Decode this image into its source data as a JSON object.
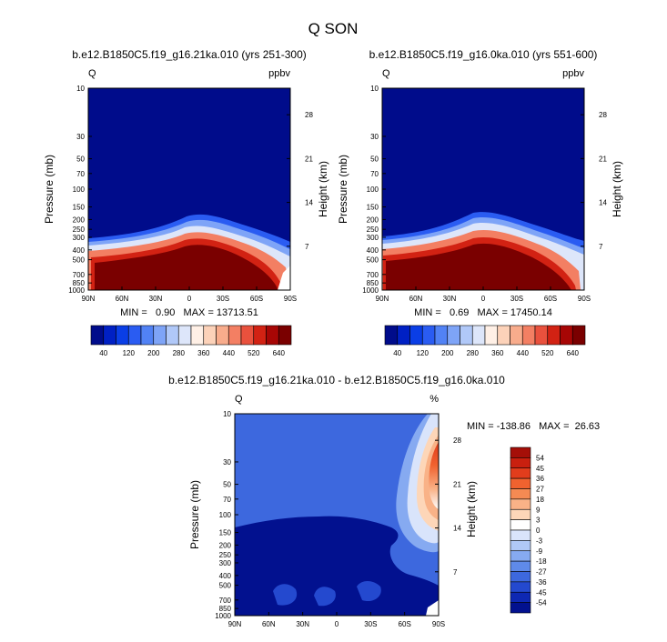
{
  "page": {
    "title": "Q SON"
  },
  "chart_data": [
    {
      "type": "contour",
      "id": "panel-a",
      "title": "b.e12.B1850C5.f19_g16.21ka.010 (yrs 251-300)",
      "left_label": "Q",
      "right_label": "ppbv",
      "ylabel": "Pressure (mb)",
      "ylabel_right": "Height (km)",
      "x_ticks": [
        "90N",
        "60N",
        "30N",
        "0",
        "30S",
        "60S",
        "90S"
      ],
      "pressure_ticks": [
        "10",
        "30",
        "50",
        "70",
        "100",
        "150",
        "200",
        "250",
        "300",
        "400",
        "500",
        "700",
        "850",
        "1000"
      ],
      "height_ticks": [
        "28",
        "21",
        "14",
        "7"
      ],
      "stats": "MIN =   0.90   MAX = 13713.51",
      "min": 0.9,
      "max": 13713.51,
      "colorbar_labels": [
        "40",
        "120",
        "200",
        "280",
        "360",
        "440",
        "520",
        "640"
      ],
      "colorbar_levels": [
        40,
        80,
        120,
        160,
        200,
        240,
        280,
        320,
        360,
        400,
        440,
        480,
        520,
        560,
        640
      ],
      "colorbar_colors": [
        "#000c8b",
        "#0020c4",
        "#0a3ee6",
        "#2a5cf2",
        "#5182f5",
        "#7ea4f7",
        "#b0c8f8",
        "#dde6fa",
        "#fff0e6",
        "#fcd2b9",
        "#f8ac8c",
        "#f37f63",
        "#e9513d",
        "#d22213",
        "#a70605",
        "#7a0000"
      ]
    },
    {
      "type": "contour",
      "id": "panel-b",
      "title": "b.e12.B1850C5.f19_g16.0ka.010 (yrs 551-600)",
      "left_label": "Q",
      "right_label": "ppbv",
      "ylabel": "Pressure (mb)",
      "ylabel_right": "Height (km)",
      "x_ticks": [
        "90N",
        "60N",
        "30N",
        "0",
        "30S",
        "60S",
        "90S"
      ],
      "pressure_ticks": [
        "10",
        "30",
        "50",
        "70",
        "100",
        "150",
        "200",
        "250",
        "300",
        "400",
        "500",
        "700",
        "850",
        "1000"
      ],
      "height_ticks": [
        "28",
        "21",
        "14",
        "7"
      ],
      "stats": "MIN =   0.69   MAX = 17450.14",
      "min": 0.69,
      "max": 17450.14,
      "colorbar_labels": [
        "40",
        "120",
        "200",
        "280",
        "360",
        "440",
        "520",
        "640"
      ],
      "colorbar_levels": [
        40,
        80,
        120,
        160,
        200,
        240,
        280,
        320,
        360,
        400,
        440,
        480,
        520,
        560,
        640
      ],
      "colorbar_colors": [
        "#000c8b",
        "#0020c4",
        "#0a3ee6",
        "#2a5cf2",
        "#5182f5",
        "#7ea4f7",
        "#b0c8f8",
        "#dde6fa",
        "#fff0e6",
        "#fcd2b9",
        "#f8ac8c",
        "#f37f63",
        "#e9513d",
        "#d22213",
        "#a70605",
        "#7a0000"
      ]
    },
    {
      "type": "contour",
      "id": "panel-diff",
      "title": "b.e12.B1850C5.f19_g16.21ka.010 - b.e12.B1850C5.f19_g16.0ka.010",
      "left_label": "Q",
      "right_label": "%",
      "ylabel": "Pressure (mb)",
      "ylabel_right": "Height (km)",
      "x_ticks": [
        "90N",
        "60N",
        "30N",
        "0",
        "30S",
        "60S",
        "90S"
      ],
      "pressure_ticks": [
        "10",
        "30",
        "50",
        "70",
        "100",
        "150",
        "200",
        "250",
        "300",
        "400",
        "500",
        "700",
        "850",
        "1000"
      ],
      "height_ticks": [
        "28",
        "21",
        "14",
        "7"
      ],
      "stats": "MIN = -138.86   MAX =  26.63",
      "min": -138.86,
      "max": 26.63,
      "colorbar_labels": [
        "54",
        "45",
        "36",
        "27",
        "18",
        "9",
        "3",
        "0",
        "-3",
        "-9",
        "-18",
        "-27",
        "-36",
        "-45",
        "-54"
      ],
      "colorbar_colors": [
        "#a50f08",
        "#c9200f",
        "#e23d1c",
        "#f0622f",
        "#f58a53",
        "#f9b287",
        "#fdd6b8",
        "#ffffff",
        "#d9e4fb",
        "#b0c8f6",
        "#86aaf1",
        "#5f8ae9",
        "#3d68de",
        "#2449cf",
        "#0e28b3",
        "#02118f"
      ]
    }
  ]
}
